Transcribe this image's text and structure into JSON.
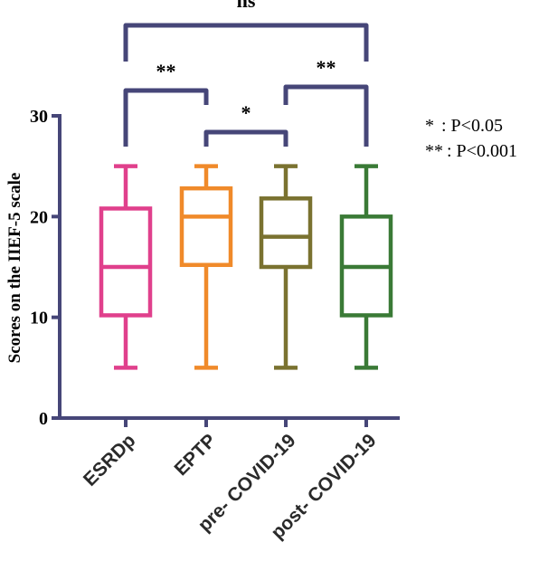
{
  "chart_data": {
    "type": "box",
    "title": "",
    "xlabel": "",
    "ylabel": "Scores on the IIEF-5 scale",
    "ylim": [
      0,
      30
    ],
    "yticks": [
      0,
      10,
      20,
      30
    ],
    "grid": false,
    "categories": [
      "ESRDp",
      "EPTP",
      "pre- COVID-19",
      "post- COVID-19"
    ],
    "boxes": [
      {
        "category": "ESRDp",
        "min": 5,
        "q1": 10.2,
        "median": 15,
        "q3": 20.8,
        "max": 25,
        "color": "#e0408c"
      },
      {
        "category": "EPTP",
        "min": 5,
        "q1": 15.2,
        "median": 20,
        "q3": 22.8,
        "max": 25,
        "color": "#f08a2a"
      },
      {
        "category": "pre- COVID-19",
        "min": 5,
        "q1": 15.0,
        "median": 18,
        "q3": 21.8,
        "max": 25,
        "color": "#7a7230"
      },
      {
        "category": "post- COVID-19",
        "min": 5,
        "q1": 10.2,
        "median": 15,
        "q3": 20.0,
        "max": 25,
        "color": "#3a7a36"
      }
    ],
    "significance": [
      {
        "from": "ESRDp",
        "to": "EPTP",
        "label": "**"
      },
      {
        "from": "EPTP",
        "to": "pre- COVID-19",
        "label": "*"
      },
      {
        "from": "pre- COVID-19",
        "to": "post- COVID-19",
        "label": "**"
      },
      {
        "from": "ESRDp",
        "to": "post- COVID-19",
        "label": "ns"
      }
    ],
    "legend": {
      "placement": "right",
      "items": [
        {
          "symbol": "*",
          "text": ": P<0.05"
        },
        {
          "symbol": "**",
          "text": ": P<0.001"
        }
      ]
    },
    "axis_color": "#464678"
  }
}
